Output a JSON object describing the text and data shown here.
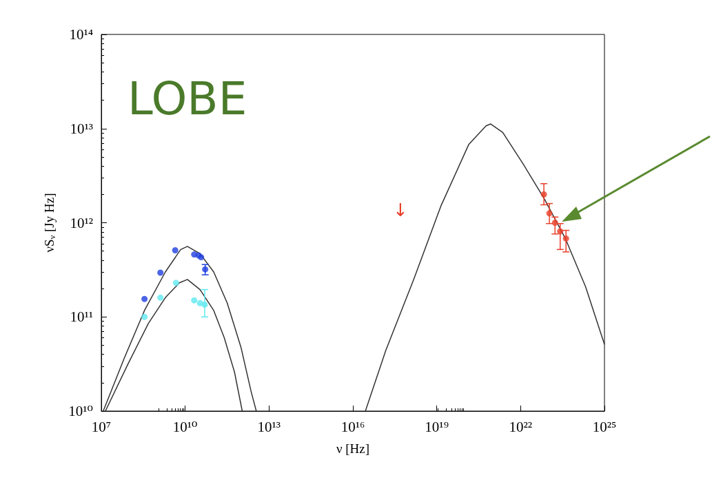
{
  "chart_data": {
    "type": "scatter",
    "xlabel": "ν [Hz]",
    "ylabel": "νS$_{ν}$ [Jy Hz]",
    "log": "xy",
    "grid": false,
    "marker": "circle",
    "xlim": [
      10000000.0,
      1e+25
    ],
    "ylim": [
      10000000000.0,
      100000000000000.0
    ],
    "xticks": [
      {
        "value": 10000000.0,
        "label": "10⁷"
      },
      {
        "value": 10000000000.0,
        "label": "10¹⁰"
      },
      {
        "value": 10000000000000.0,
        "label": "10¹³"
      },
      {
        "value": 1e+16,
        "label": "10¹⁶"
      },
      {
        "value": 1e+19,
        "label": "10¹⁹"
      },
      {
        "value": 1e+22,
        "label": "10²²"
      },
      {
        "value": 1e+25,
        "label": "10²⁵"
      }
    ],
    "yticks": [
      {
        "value": 10000000000.0,
        "label": "10¹⁰"
      },
      {
        "value": 100000000000.0,
        "label": "10¹¹"
      },
      {
        "value": 1000000000000.0,
        "label": "10¹²"
      },
      {
        "value": 10000000000000.0,
        "label": "10¹³"
      },
      {
        "value": 100000000000000.0,
        "label": "10¹⁴"
      }
    ],
    "annotations": [
      "LOBE",
      "↓"
    ],
    "series": [
      {
        "type": "line",
        "marker": "none",
        "color": "#333333",
        "x": [
          11700000.0,
          65000000.0,
          350000000.0,
          1950000000.0,
          6900000000.0,
          12000000000.0,
          34000000000.0,
          105000000000.0,
          320000000000.0,
          1000000000000.0,
          2300000000000.0,
          3500000000000.0
        ],
        "values": [
          10000000000.0,
          36000000000.0,
          117000000000.0,
          300000000000.0,
          520000000000.0,
          560000000000.0,
          470000000000.0,
          300000000000.0,
          140000000000.0,
          47000000000.0,
          16000000000.0,
          10000000000.0
        ]
      },
      {
        "type": "line",
        "marker": "none",
        "color": "#333333",
        "x": [
          14000000.0,
          87000000.0,
          480000000.0,
          1950000000.0,
          6200000000.0,
          12000000000.0,
          34000000000.0,
          105000000000.0,
          250000000000.0,
          580000000000.0,
          1100000000000.0
        ],
        "values": [
          10000000000.0,
          31000000000.0,
          85000000000.0,
          160000000000.0,
          230000000000.0,
          250000000000.0,
          195000000000.0,
          117000000000.0,
          60000000000.0,
          26000000000.0,
          10000000000.0
        ]
      },
      {
        "type": "line",
        "marker": "none",
        "color": "#333333",
        "x": [
          2.8e+16,
          1.5e+17,
          1.5e+18,
          1.4e+19,
          1.4e+20,
          5.8e+20,
          8.5e+20,
          2.3e+21,
          1.3e+22,
          7e+22,
          3.9e+23,
          2.1e+24,
          1e+25
        ],
        "values": [
          10000000000.0,
          44000000000.0,
          250000000000.0,
          1500000000000.0,
          6800000000000.0,
          10700000000000.0,
          11200000000000.0,
          9100000000000.0,
          4100000000000.0,
          1800000000000.0,
          690000000000.0,
          210000000000.0,
          51000000000.0
        ]
      },
      {
        "color": "#1f3fe0",
        "x": [
          350000000.0,
          1300000000.0,
          4400000000.0,
          21000000000.0,
          30000000000.0,
          37000000000.0,
          52000000000.0
        ],
        "values": [
          155000000000.0,
          295000000000.0,
          510000000000.0,
          460000000000.0,
          450000000000.0,
          430000000000.0,
          320000000000.0
        ],
        "errors": [
          null,
          null,
          null,
          null,
          null,
          null,
          [
            280000000000.0,
            360000000000.0
          ]
        ]
      },
      {
        "color": "#5fe8f0",
        "x": [
          350000000.0,
          1300000000.0,
          4700000000.0,
          21000000000.0,
          34000000000.0,
          50000000000.0
        ],
        "values": [
          100000000000.0,
          160000000000.0,
          230000000000.0,
          150000000000.0,
          140000000000.0,
          135000000000.0
        ],
        "errors": [
          null,
          null,
          null,
          null,
          null,
          [
            100000000000.0,
            195000000000.0
          ]
        ]
      },
      {
        "color": "#e8402a",
        "x": [
          6.8e+22,
          1.07e+23,
          1.7e+23,
          2.6e+23,
          4.2e+23
        ],
        "values": [
          2000000000000.0,
          1260000000000.0,
          1000000000000.0,
          810000000000.0,
          680000000000.0
        ],
        "errors": [
          [
            1550000000000.0,
            2600000000000.0
          ],
          [
            980000000000.0,
            1600000000000.0
          ],
          [
            760000000000.0,
            1150000000000.0
          ],
          [
            520000000000.0,
            980000000000.0
          ],
          [
            490000000000.0,
            830000000000.0
          ]
        ]
      }
    ]
  }
}
